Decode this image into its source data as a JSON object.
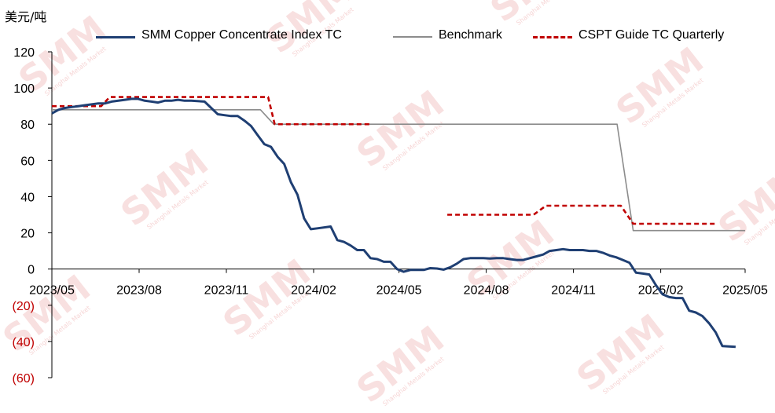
{
  "unit_label": "美元/吨",
  "colors": {
    "index_line": "#1f3f73",
    "benchmark_line": "#8c8c8c",
    "cspt_line": "#c00000",
    "negative_tick": "#c00000",
    "axis": "#000000",
    "watermark": "#e07070"
  },
  "watermark": {
    "text": "SMM",
    "subtext": "Shanghai Metals Market"
  },
  "chart_data": {
    "type": "line",
    "title": "",
    "xlabel": "",
    "ylabel": "美元/吨",
    "ylim": [
      -60,
      120
    ],
    "y_ticks": [
      {
        "value": 120,
        "label": "120"
      },
      {
        "value": 100,
        "label": "100"
      },
      {
        "value": 80,
        "label": "80"
      },
      {
        "value": 60,
        "label": "60"
      },
      {
        "value": 40,
        "label": "40"
      },
      {
        "value": 20,
        "label": "20"
      },
      {
        "value": 0,
        "label": "0"
      },
      {
        "value": -20,
        "label": "(20)"
      },
      {
        "value": -40,
        "label": "(40)"
      },
      {
        "value": -60,
        "label": "(60)"
      }
    ],
    "xlim": [
      "2023-05-01",
      "2025-05-01"
    ],
    "x_ticks": [
      {
        "value": "2023-05-01",
        "label": "2023/05"
      },
      {
        "value": "2023-08-01",
        "label": "2023/08"
      },
      {
        "value": "2023-11-01",
        "label": "2023/11"
      },
      {
        "value": "2024-02-01",
        "label": "2024/02"
      },
      {
        "value": "2024-05-01",
        "label": "2024/05"
      },
      {
        "value": "2024-08-01",
        "label": "2024/08"
      },
      {
        "value": "2024-11-01",
        "label": "2024/11"
      },
      {
        "value": "2025-02-01",
        "label": "2025/02"
      },
      {
        "value": "2025-05-01",
        "label": "2025/05"
      }
    ],
    "grid": false,
    "legend_position": "top",
    "series": [
      {
        "name": "SMM Copper Concentrate Index TC",
        "style": "solid",
        "points": [
          [
            "2023-05-01",
            86
          ],
          [
            "2023-05-08",
            88
          ],
          [
            "2023-05-15",
            89
          ],
          [
            "2023-05-22",
            89.5
          ],
          [
            "2023-05-29",
            90
          ],
          [
            "2023-06-05",
            90.5
          ],
          [
            "2023-06-12",
            91
          ],
          [
            "2023-06-19",
            91.5
          ],
          [
            "2023-06-26",
            91.5
          ],
          [
            "2023-07-03",
            92.5
          ],
          [
            "2023-07-10",
            93
          ],
          [
            "2023-07-17",
            93.5
          ],
          [
            "2023-07-24",
            94
          ],
          [
            "2023-07-31",
            94
          ],
          [
            "2023-08-07",
            93
          ],
          [
            "2023-08-14",
            92.5
          ],
          [
            "2023-08-21",
            92
          ],
          [
            "2023-08-28",
            93
          ],
          [
            "2023-09-04",
            93
          ],
          [
            "2023-09-11",
            93.5
          ],
          [
            "2023-09-18",
            93
          ],
          [
            "2023-09-25",
            93
          ],
          [
            "2023-10-09",
            92.5
          ],
          [
            "2023-10-16",
            89
          ],
          [
            "2023-10-23",
            85.5
          ],
          [
            "2023-10-30",
            85
          ],
          [
            "2023-11-06",
            84.5
          ],
          [
            "2023-11-13",
            84.5
          ],
          [
            "2023-11-20",
            82
          ],
          [
            "2023-11-27",
            79
          ],
          [
            "2023-12-04",
            74
          ],
          [
            "2023-12-11",
            69
          ],
          [
            "2023-12-18",
            67.5
          ],
          [
            "2023-12-25",
            62
          ],
          [
            "2024-01-01",
            58
          ],
          [
            "2024-01-08",
            48
          ],
          [
            "2024-01-15",
            41
          ],
          [
            "2024-01-22",
            28
          ],
          [
            "2024-01-29",
            22
          ],
          [
            "2024-02-05",
            22.5
          ],
          [
            "2024-02-19",
            23.5
          ],
          [
            "2024-02-26",
            16
          ],
          [
            "2024-03-04",
            15
          ],
          [
            "2024-03-11",
            13
          ],
          [
            "2024-03-18",
            10.5
          ],
          [
            "2024-03-25",
            10.5
          ],
          [
            "2024-04-01",
            6
          ],
          [
            "2024-04-08",
            5.5
          ],
          [
            "2024-04-15",
            4
          ],
          [
            "2024-04-22",
            4
          ],
          [
            "2024-04-29",
            0
          ],
          [
            "2024-05-06",
            -1.5
          ],
          [
            "2024-05-13",
            -0.5
          ],
          [
            "2024-05-20",
            -0.5
          ],
          [
            "2024-05-27",
            -0.5
          ],
          [
            "2024-06-03",
            0.5
          ],
          [
            "2024-06-10",
            0.3
          ],
          [
            "2024-06-17",
            -0.3
          ],
          [
            "2024-06-24",
            1
          ],
          [
            "2024-07-01",
            3
          ],
          [
            "2024-07-08",
            5.5
          ],
          [
            "2024-07-15",
            6
          ],
          [
            "2024-07-22",
            6
          ],
          [
            "2024-07-29",
            6
          ],
          [
            "2024-08-05",
            5.8
          ],
          [
            "2024-08-12",
            6
          ],
          [
            "2024-08-19",
            6
          ],
          [
            "2024-08-26",
            5.5
          ],
          [
            "2024-09-02",
            5
          ],
          [
            "2024-09-09",
            5
          ],
          [
            "2024-09-16",
            6
          ],
          [
            "2024-09-23",
            7
          ],
          [
            "2024-09-30",
            8
          ],
          [
            "2024-10-07",
            10
          ],
          [
            "2024-10-14",
            10.5
          ],
          [
            "2024-10-21",
            11
          ],
          [
            "2024-10-28",
            10.5
          ],
          [
            "2024-11-04",
            10.5
          ],
          [
            "2024-11-11",
            10.5
          ],
          [
            "2024-11-18",
            10
          ],
          [
            "2024-11-25",
            10
          ],
          [
            "2024-12-02",
            9
          ],
          [
            "2024-12-09",
            7.5
          ],
          [
            "2024-12-16",
            6.5
          ],
          [
            "2024-12-23",
            5
          ],
          [
            "2024-12-30",
            3.5
          ],
          [
            "2025-01-06",
            -2
          ],
          [
            "2025-01-13",
            -2.5
          ],
          [
            "2025-01-20",
            -3
          ],
          [
            "2025-01-27",
            -9
          ],
          [
            "2025-02-03",
            -14
          ],
          [
            "2025-02-10",
            -15.5
          ],
          [
            "2025-02-17",
            -16
          ],
          [
            "2025-02-24",
            -16
          ],
          [
            "2025-03-03",
            -23
          ],
          [
            "2025-03-10",
            -24
          ],
          [
            "2025-03-17",
            -26
          ],
          [
            "2025-03-24",
            -30
          ],
          [
            "2025-03-31",
            -35
          ],
          [
            "2025-04-07",
            -42.5
          ],
          [
            "2025-04-21",
            -43
          ]
        ]
      },
      {
        "name": "Benchmark",
        "style": "solid",
        "points": [
          [
            "2023-05-01",
            88
          ],
          [
            "2023-12-07",
            88
          ],
          [
            "2023-12-21",
            80
          ],
          [
            "2024-12-17",
            80
          ],
          [
            "2025-01-03",
            21.25
          ],
          [
            "2025-05-01",
            21.25
          ]
        ]
      },
      {
        "name": "CSPT Guide TC Quarterly",
        "style": "dashed",
        "points": [
          [
            "2023-05-01",
            90
          ],
          [
            "2023-06-22",
            90
          ],
          [
            "2023-07-01",
            95
          ],
          [
            "2023-12-15",
            95
          ],
          [
            "2023-12-22",
            80
          ],
          [
            "2024-03-31",
            80
          ],
          null,
          [
            "2024-06-21",
            30
          ],
          [
            "2024-09-20",
            30
          ],
          [
            "2024-10-03",
            35
          ],
          [
            "2024-12-21",
            35
          ],
          [
            "2025-01-03",
            25
          ],
          [
            "2025-03-31",
            25
          ]
        ]
      }
    ]
  }
}
